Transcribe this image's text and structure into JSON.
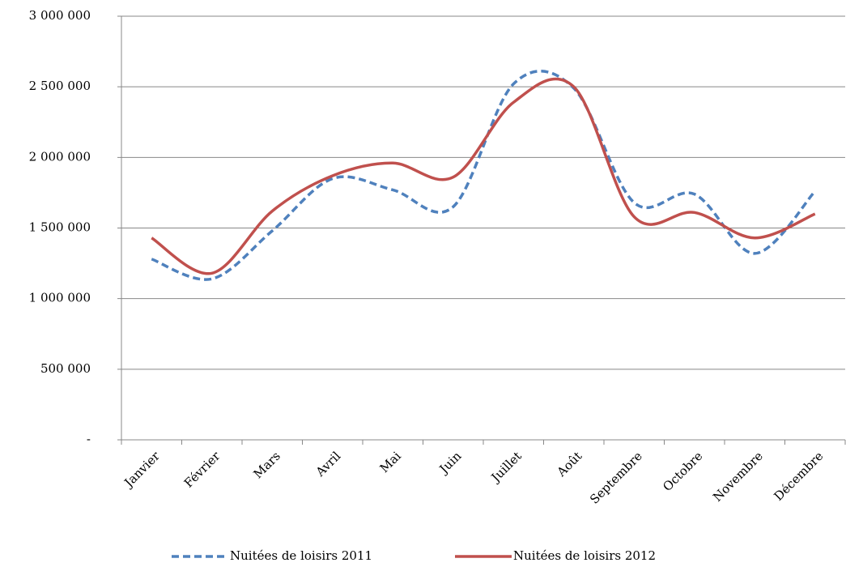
{
  "chart_data": {
    "type": "line",
    "categories": [
      "Janvier",
      "Février",
      "Mars",
      "Avril",
      "Mai",
      "Juin",
      "Juillet",
      "Août",
      "Septembre",
      "Octobre",
      "Novembre",
      "Décembre"
    ],
    "series": [
      {
        "name": "Nuitées de loisirs 2011",
        "color": "#4f81bd",
        "dash": true,
        "values": [
          1280000,
          1140000,
          1480000,
          1850000,
          1770000,
          1650000,
          2520000,
          2490000,
          1680000,
          1740000,
          1320000,
          1760000
        ]
      },
      {
        "name": "Nuitées de loisirs 2012",
        "color": "#c0504d",
        "dash": false,
        "values": [
          1430000,
          1180000,
          1620000,
          1870000,
          1960000,
          1860000,
          2390000,
          2500000,
          1580000,
          1610000,
          1430000,
          1600000
        ]
      }
    ],
    "ylim": [
      0,
      3000000
    ],
    "yticks": [
      {
        "value": 0,
        "label": "-"
      },
      {
        "value": 500000,
        "label": "500 000"
      },
      {
        "value": 1000000,
        "label": "1 000 000"
      },
      {
        "value": 1500000,
        "label": "1 500 000"
      },
      {
        "value": 2000000,
        "label": "2 000 000"
      },
      {
        "value": 2500000,
        "label": "2 500 000"
      },
      {
        "value": 3000000,
        "label": "3 000 000"
      }
    ],
    "grid": true,
    "legend": "bottom",
    "smooth": true
  }
}
